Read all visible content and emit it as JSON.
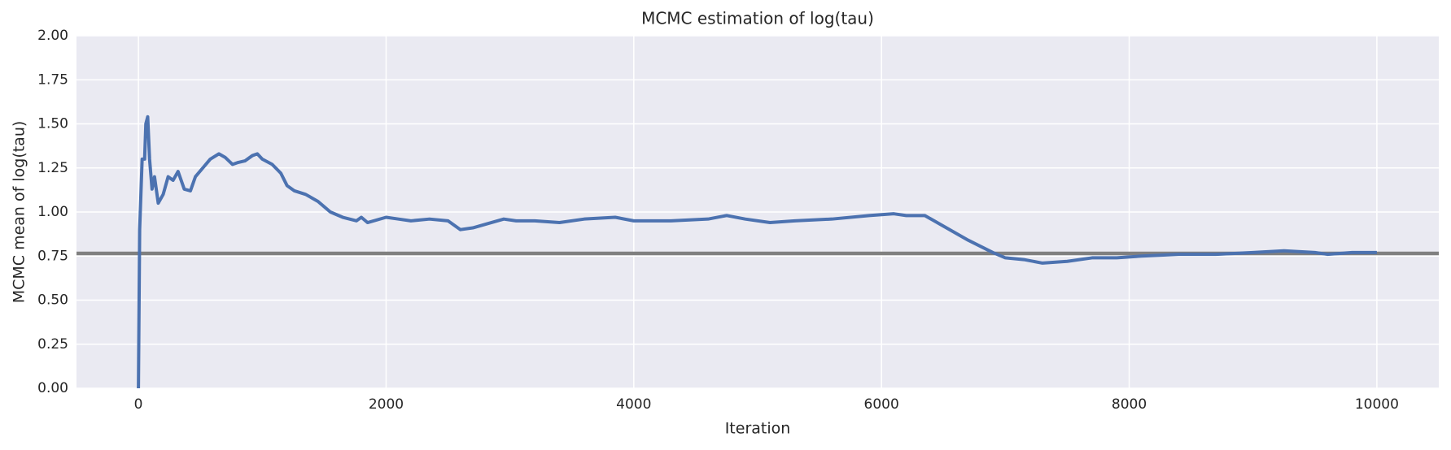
{
  "chart_data": {
    "type": "line",
    "title": "MCMC estimation of log(tau)",
    "xlabel": "Iteration",
    "ylabel": "MCMC mean of log(tau)",
    "x": [
      0,
      10,
      30,
      50,
      60,
      75,
      90,
      110,
      130,
      160,
      200,
      240,
      280,
      320,
      370,
      420,
      460,
      520,
      580,
      650,
      700,
      760,
      800,
      860,
      920,
      960,
      1000,
      1080,
      1150,
      1200,
      1260,
      1350,
      1450,
      1550,
      1650,
      1760,
      1800,
      1850,
      2000,
      2100,
      2200,
      2350,
      2500,
      2600,
      2700,
      2800,
      2950,
      3050,
      3200,
      3400,
      3600,
      3850,
      4000,
      4300,
      4600,
      4750,
      4900,
      5100,
      5300,
      5600,
      5900,
      6100,
      6200,
      6350,
      6500,
      6700,
      6900,
      7000,
      7150,
      7300,
      7500,
      7700,
      7900,
      8100,
      8400,
      8700,
      9000,
      9250,
      9500,
      9600,
      9800,
      10000
    ],
    "series": [
      {
        "color": "#4c72b0",
        "values": [
          0.0,
          0.9,
          1.3,
          1.3,
          1.5,
          1.54,
          1.3,
          1.13,
          1.2,
          1.05,
          1.1,
          1.2,
          1.18,
          1.23,
          1.13,
          1.12,
          1.2,
          1.25,
          1.3,
          1.33,
          1.31,
          1.27,
          1.28,
          1.29,
          1.32,
          1.33,
          1.3,
          1.27,
          1.22,
          1.15,
          1.12,
          1.1,
          1.06,
          1.0,
          0.97,
          0.95,
          0.97,
          0.94,
          0.97,
          0.96,
          0.95,
          0.96,
          0.95,
          0.9,
          0.91,
          0.93,
          0.96,
          0.95,
          0.95,
          0.94,
          0.96,
          0.97,
          0.95,
          0.95,
          0.96,
          0.98,
          0.96,
          0.94,
          0.95,
          0.96,
          0.98,
          0.99,
          0.98,
          0.98,
          0.92,
          0.84,
          0.77,
          0.74,
          0.73,
          0.71,
          0.72,
          0.74,
          0.74,
          0.75,
          0.76,
          0.76,
          0.77,
          0.78,
          0.77,
          0.76,
          0.77,
          0.77
        ]
      }
    ],
    "hlines": [
      {
        "y": 0.765,
        "color": "#808080"
      }
    ],
    "xlim": [
      -500,
      10500
    ],
    "ylim": [
      0,
      2
    ],
    "xticks": [
      0,
      2000,
      4000,
      6000,
      8000,
      10000
    ],
    "yticks": [
      {
        "value": 0,
        "label": "0.00"
      },
      0.25,
      {
        "value": 0.5,
        "label": "0.50"
      },
      0.75,
      {
        "value": 1,
        "label": "1.00"
      },
      1.25,
      {
        "value": 1.5,
        "label": "1.50"
      },
      1.75,
      {
        "value": 2,
        "label": "2.00"
      }
    ],
    "grid": true
  }
}
